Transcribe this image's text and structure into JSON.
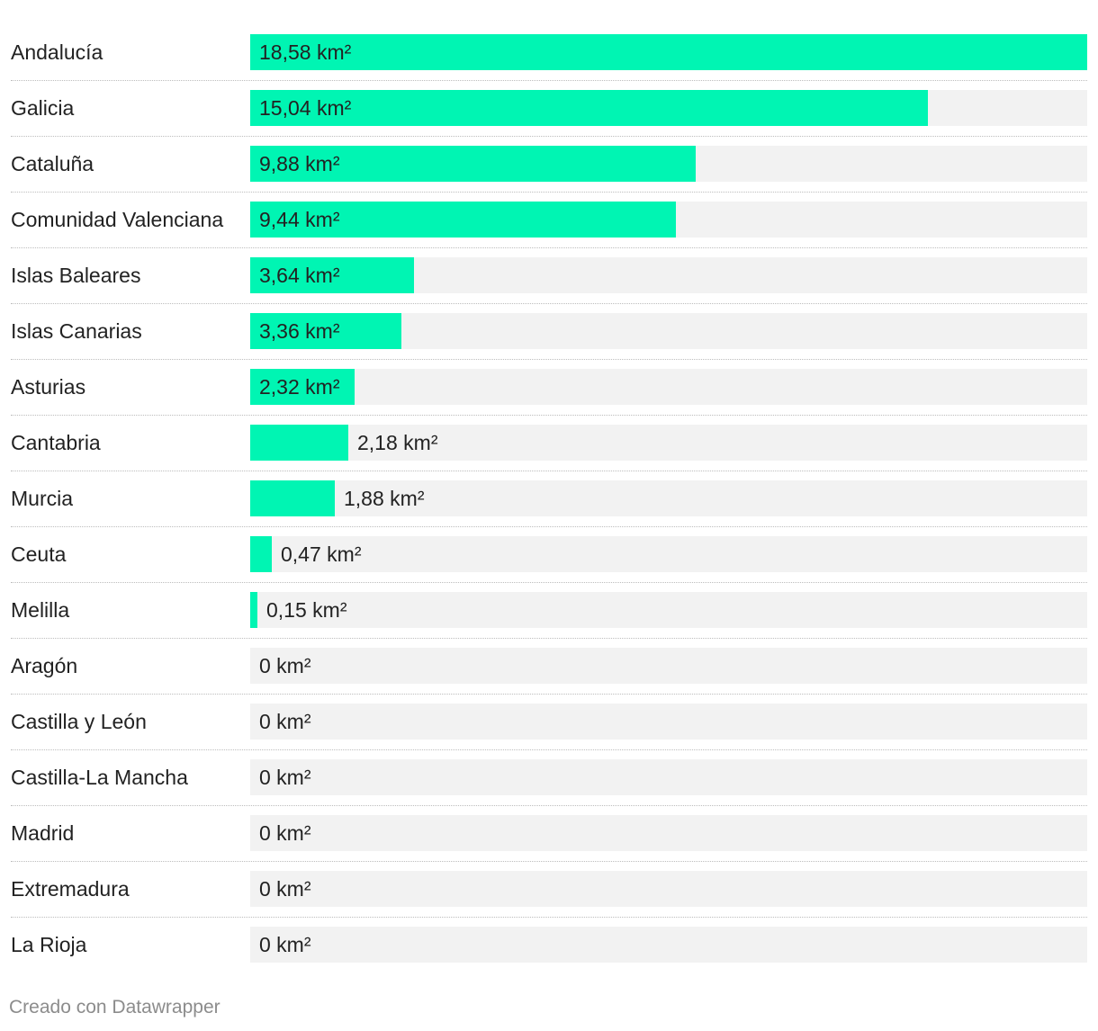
{
  "chart_data": {
    "type": "bar",
    "orientation": "horizontal",
    "unit": "km²",
    "xlim": [
      0,
      18.58
    ],
    "bar_color": "#00f5b3",
    "track_color": "#f2f2f2",
    "categories": [
      "Andalucía",
      "Galicia",
      "Cataluña",
      "Comunidad Valenciana",
      "Islas Baleares",
      "Islas Canarias",
      "Asturias",
      "Cantabria",
      "Murcia",
      "Ceuta",
      "Melilla",
      "Aragón",
      "Castilla y León",
      "Castilla-La Mancha",
      "Madrid",
      "Extremadura",
      "La Rioja"
    ],
    "values": [
      18.58,
      15.04,
      9.88,
      9.44,
      3.64,
      3.36,
      2.32,
      2.18,
      1.88,
      0.47,
      0.15,
      0,
      0,
      0,
      0,
      0,
      0
    ],
    "value_labels": [
      "18,58 km²",
      "15,04 km²",
      "9,88 km²",
      "9,44 km²",
      "3,64 km²",
      "3,36 km²",
      "2,32 km²",
      "2,18 km²",
      "1,88 km²",
      "0,47 km²",
      "0,15 km²",
      "0 km²",
      "0 km²",
      "0 km²",
      "0 km²",
      "0 km²",
      "0 km²"
    ]
  },
  "footer": {
    "credit": "Creado con Datawrapper"
  }
}
